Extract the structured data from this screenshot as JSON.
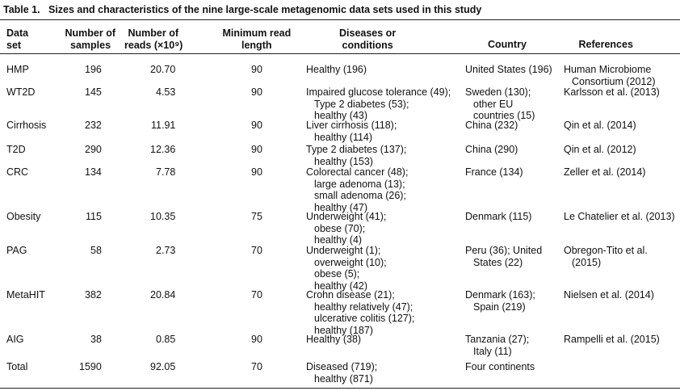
{
  "table": {
    "caption": {
      "label": "Table 1.",
      "text": "Sizes and characteristics of the nine large-scale metagenomic data sets used in this study"
    },
    "header": [
      [
        "Data",
        "set"
      ],
      [
        "Number of",
        "samples"
      ],
      [
        "Number of",
        "reads (×10⁹)"
      ],
      [
        "Minimum read",
        "length"
      ],
      [
        "Diseases or",
        "conditions"
      ],
      [
        "Country"
      ],
      [
        "References"
      ]
    ],
    "rows": [
      [
        [
          "HMP"
        ],
        [
          "196"
        ],
        [
          "20.70"
        ],
        [
          "90"
        ],
        [
          "Healthy (196)"
        ],
        [
          "United States (196)"
        ],
        [
          "Human Microbiome",
          "Consortium (2012)"
        ]
      ],
      [
        [
          "WT2D"
        ],
        [
          "145"
        ],
        [
          "4.53"
        ],
        [
          "90"
        ],
        [
          "Impaired glucose tolerance (49);",
          "Type 2 diabetes (53);",
          "healthy (43)"
        ],
        [
          "Sweden (130);",
          "other EU",
          "countries (15)"
        ],
        [
          "Karlsson et al. (2013)"
        ]
      ],
      [
        [
          "Cirrhosis"
        ],
        [
          "232"
        ],
        [
          "11.91"
        ],
        [
          "90"
        ],
        [
          "Liver cirrhosis (118);",
          "healthy (114)"
        ],
        [
          "China (232)"
        ],
        [
          "Qin et al. (2014)"
        ]
      ],
      [
        [
          "T2D"
        ],
        [
          "290"
        ],
        [
          "12.36"
        ],
        [
          "90"
        ],
        [
          "Type 2 diabetes (137);",
          "healthy (153)"
        ],
        [
          "China (290)"
        ],
        [
          "Qin et al. (2012)"
        ]
      ],
      [
        [
          "CRC"
        ],
        [
          "134"
        ],
        [
          "7.78"
        ],
        [
          "90"
        ],
        [
          "Colorectal cancer (48);",
          "large adenoma (13);",
          "small adenoma (26);",
          "healthy (47)"
        ],
        [
          "France (134)"
        ],
        [
          "Zeller et al. (2014)"
        ]
      ],
      [
        [
          "Obesity"
        ],
        [
          "115"
        ],
        [
          "10.35"
        ],
        [
          "75"
        ],
        [
          "Underweight (41);",
          "obese (70);",
          "healthy (4)"
        ],
        [
          "Denmark (115)"
        ],
        [
          "Le Chatelier et al. (2013)"
        ]
      ],
      [
        [
          "PAG"
        ],
        [
          "58"
        ],
        [
          "2.73"
        ],
        [
          "70"
        ],
        [
          "Underweight (1);",
          "overweight (10);",
          "obese (5);",
          "healthy (42)"
        ],
        [
          "Peru (36); United",
          "States (22)"
        ],
        [
          "Obregon-Tito et al.",
          "(2015)"
        ]
      ],
      [
        [
          "MetaHIT"
        ],
        [
          "382"
        ],
        [
          "20.84"
        ],
        [
          "70"
        ],
        [
          "Crohn disease (21);",
          "healthy relatively (47);",
          "ulcerative colitis (127);",
          "healthy (187)"
        ],
        [
          "Denmark (163);",
          "Spain (219)"
        ],
        [
          "Nielsen et al. (2014)"
        ]
      ],
      [
        [
          "AIG"
        ],
        [
          "38"
        ],
        [
          "0.85"
        ],
        [
          "90"
        ],
        [
          "Healthy (38)"
        ],
        [
          "Tanzania (27);",
          "Italy (11)"
        ],
        [
          "Rampelli et al. (2015)"
        ]
      ],
      [
        [
          "Total"
        ],
        [
          "1590"
        ],
        [
          "92.05"
        ],
        [
          "70"
        ],
        [
          "Diseased (719);",
          "healthy (871)"
        ],
        [
          "Four continents"
        ],
        []
      ]
    ]
  }
}
